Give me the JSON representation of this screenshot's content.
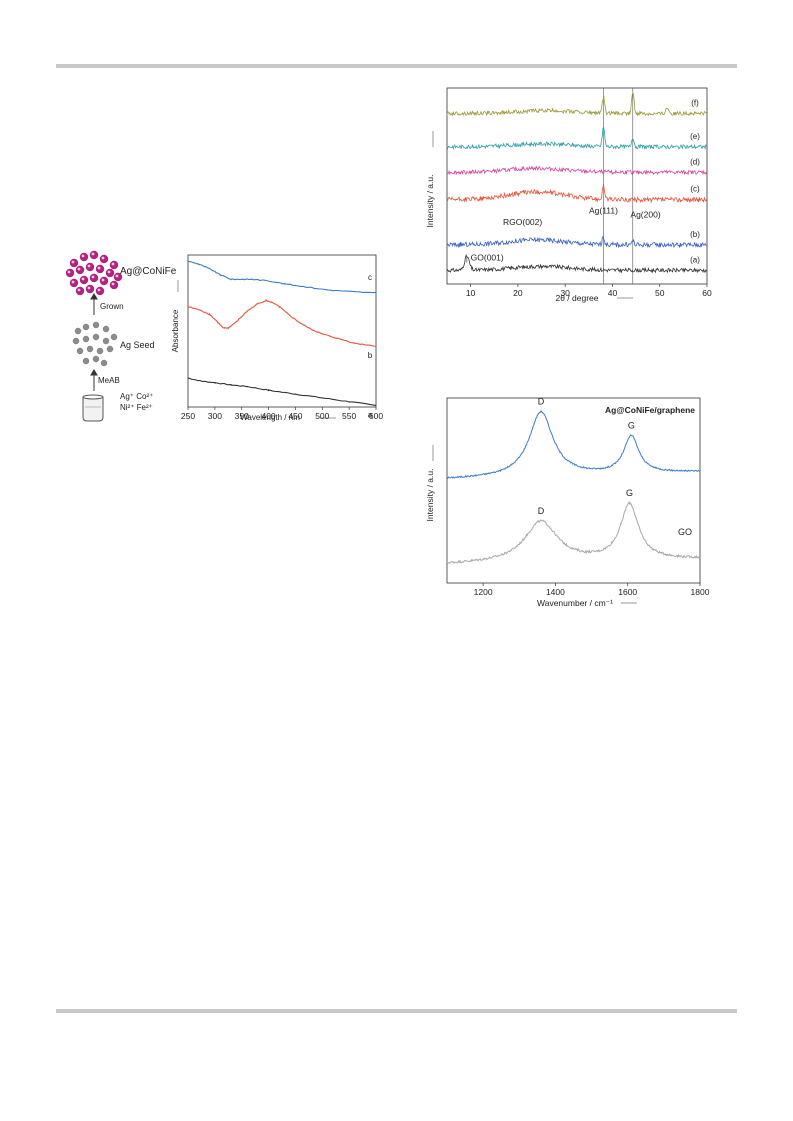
{
  "scheme": {
    "product_label": "Ag@CoNiFe",
    "grown_label": "Grown",
    "seed_label": "Ag Seed",
    "reductant_label": "MeAB",
    "ions_line1": "Ag⁺  Co²⁺",
    "ions_line2": "Ni²⁺  Fe²⁺",
    "colors": {
      "shell": "#b0247f",
      "seed": "#8c8c8c"
    }
  },
  "chart_data": [
    {
      "id": "uv-vis",
      "type": "line",
      "xlabel": "Wavelength / nm",
      "ylabel": "Absorbance",
      "xlim": [
        250,
        600
      ],
      "xticks": [
        250,
        300,
        350,
        400,
        450,
        500,
        550,
        600
      ],
      "ylim": [
        0,
        1
      ],
      "yticks_shown": false,
      "series": [
        {
          "name": "a",
          "color": "#333333",
          "x": [
            250,
            275,
            300,
            330,
            360,
            400,
            450,
            500,
            550,
            600
          ],
          "y": [
            0.19,
            0.17,
            0.16,
            0.145,
            0.135,
            0.11,
            0.085,
            0.06,
            0.035,
            0.01
          ]
        },
        {
          "name": "b",
          "color": "#e8513a",
          "x": [
            250,
            270,
            290,
            305,
            315,
            325,
            340,
            360,
            380,
            395,
            405,
            420,
            440,
            460,
            480,
            500,
            530,
            560,
            600
          ],
          "y": [
            0.66,
            0.64,
            0.61,
            0.56,
            0.52,
            0.52,
            0.56,
            0.63,
            0.68,
            0.7,
            0.69,
            0.66,
            0.6,
            0.55,
            0.51,
            0.48,
            0.45,
            0.42,
            0.4
          ]
        },
        {
          "name": "c",
          "color": "#3d7cc9",
          "x": [
            250,
            270,
            290,
            310,
            330,
            350,
            370,
            400,
            430,
            470,
            510,
            550,
            600
          ],
          "y": [
            0.96,
            0.94,
            0.91,
            0.87,
            0.84,
            0.84,
            0.84,
            0.83,
            0.81,
            0.79,
            0.77,
            0.76,
            0.75
          ]
        }
      ]
    },
    {
      "id": "xrd",
      "type": "line",
      "xlabel": "2θ / degree",
      "ylabel": "Intensity / a.u.",
      "xlim": [
        5,
        60
      ],
      "xticks": [
        10,
        20,
        30,
        40,
        50,
        60
      ],
      "ylim": [
        0,
        1
      ],
      "yticks_shown": false,
      "reference_lines_x": [
        38.1,
        44.3
      ],
      "annotations": [
        {
          "text": "GO(001)",
          "x": 13.5,
          "y": 0.12
        },
        {
          "text": "RGO(002)",
          "x": 21,
          "y": 0.3
        },
        {
          "text": "Ag(111)",
          "x": 38.1,
          "y": 0.36
        },
        {
          "text": "Ag(200)",
          "x": 47,
          "y": 0.34
        }
      ],
      "series": [
        {
          "name": "(a)",
          "color": "#333333",
          "baseline": 0.07,
          "noise": 0.01,
          "features": [
            [
              9.2,
              0.07,
              0.5
            ],
            [
              25,
              0.02,
              6
            ]
          ]
        },
        {
          "name": "(b)",
          "color": "#3a5fc4",
          "baseline": 0.2,
          "noise": 0.012,
          "features": [
            [
              24,
              0.025,
              6
            ],
            [
              38.1,
              0.035,
              0.25
            ],
            [
              44.3,
              0.02,
              0.25
            ]
          ]
        },
        {
          "name": "(c)",
          "color": "#e8513a",
          "baseline": 0.43,
          "noise": 0.012,
          "features": [
            [
              24,
              0.04,
              6
            ],
            [
              38.1,
              0.07,
              0.25
            ]
          ]
        },
        {
          "name": "(d)",
          "color": "#d6479e",
          "baseline": 0.57,
          "noise": 0.01,
          "features": [
            [
              24,
              0.02,
              6
            ]
          ]
        },
        {
          "name": "(e)",
          "color": "#2e9fa3",
          "baseline": 0.7,
          "noise": 0.01,
          "features": [
            [
              25,
              0.015,
              6
            ],
            [
              38.1,
              0.1,
              0.25
            ],
            [
              44.3,
              0.05,
              0.25
            ]
          ]
        },
        {
          "name": "(f)",
          "color": "#9a9a3a",
          "baseline": 0.87,
          "noise": 0.01,
          "features": [
            [
              26,
              0.015,
              6
            ],
            [
              38.1,
              0.08,
              0.25
            ],
            [
              44.3,
              0.11,
              0.25
            ],
            [
              51.6,
              0.03,
              0.35
            ]
          ]
        }
      ]
    },
    {
      "id": "raman",
      "type": "line",
      "title": "Ag@CoNiFe/graphene",
      "xlabel": "Wavenumber / cm⁻¹",
      "ylabel": "Intensity / a.u.",
      "xlim": [
        1100,
        1800
      ],
      "xticks": [
        1200,
        1400,
        1600,
        1800
      ],
      "ylim": [
        0,
        1
      ],
      "yticks_shown": false,
      "series": [
        {
          "name": "Ag@CoNiFe/graphene",
          "color": "#3d7cc9",
          "baseline": 0.56,
          "slope": 0.04,
          "noise": 0.004,
          "peaks": [
            [
              1360,
              0.35,
              40
            ],
            [
              1610,
              0.2,
              25
            ]
          ],
          "peak_labels": [
            "D",
            "G"
          ]
        },
        {
          "name": "GO",
          "color": "#a8a8a8",
          "baseline": 0.1,
          "slope": 0.03,
          "noise": 0.006,
          "peaks": [
            [
              1360,
              0.22,
              55
            ],
            [
              1605,
              0.3,
              30
            ]
          ],
          "peak_labels": [
            "D",
            "G"
          ]
        }
      ]
    }
  ]
}
